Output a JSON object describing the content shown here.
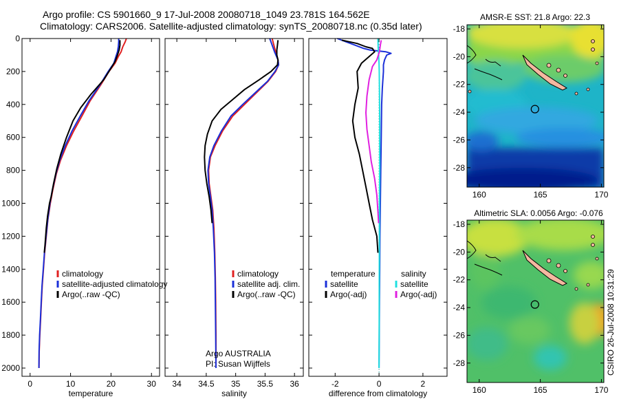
{
  "header": {
    "line1": "Argo profile: CS 5901660_9 17-Jul-2008 20080718_1049 23.781S 164.562E",
    "line2": "Climatology: CARS2006. Satellite-adjusted climatology: synTS_20080718.nc (0.35d later)"
  },
  "credit": {
    "line1": "Argo AUSTRALIA",
    "line2": "PI: Susan Wijffels"
  },
  "stamp": "CSIRO 26-Jul-2008 10:31:29",
  "colors": {
    "climatology": "#e02020",
    "satellite": "#1a2fd8",
    "argo": "#000000",
    "salinity_satellite": "#20e0e0",
    "salinity_argo": "#e020e0",
    "map_land": "#f4b8a0"
  },
  "chart_data": [
    {
      "type": "line",
      "panel": "temperature",
      "xlabel": "temperature",
      "ylabel": "",
      "xlim": [
        -2,
        32
      ],
      "ylim": [
        0,
        2050
      ],
      "y_inverted": true,
      "xticks": [
        0,
        10,
        20,
        30
      ],
      "yticks": [
        0,
        200,
        400,
        600,
        800,
        1000,
        1200,
        1400,
        1600,
        1800,
        2000
      ],
      "legend": [
        "climatology",
        "satellite-adjusted climatology",
        "Argo(..raw -QC)"
      ],
      "series": [
        {
          "name": "climatology",
          "color": "#e02020",
          "points": [
            [
              23.8,
              0
            ],
            [
              23.5,
              20
            ],
            [
              22.9,
              50
            ],
            [
              22.5,
              80
            ],
            [
              21.8,
              110
            ],
            [
              21.0,
              150
            ],
            [
              19.5,
              200
            ],
            [
              17.5,
              280
            ],
            [
              14.8,
              380
            ],
            [
              12.8,
              470
            ],
            [
              10.8,
              560
            ],
            [
              9.0,
              650
            ],
            [
              7.5,
              740
            ],
            [
              6.5,
              820
            ],
            [
              5.6,
              920
            ],
            [
              5.0,
              1000
            ],
            [
              4.4,
              1100
            ],
            [
              4.0,
              1200
            ],
            [
              3.6,
              1300
            ],
            [
              3.3,
              1400
            ],
            [
              3.0,
              1500
            ],
            [
              2.8,
              1600
            ],
            [
              2.6,
              1700
            ],
            [
              2.4,
              1800
            ],
            [
              2.25,
              1900
            ],
            [
              2.2,
              2000
            ]
          ]
        },
        {
          "name": "satellite-adjusted climatology",
          "color": "#1a2fd8",
          "points": [
            [
              21.9,
              0
            ],
            [
              21.9,
              20
            ],
            [
              21.8,
              50
            ],
            [
              21.6,
              80
            ],
            [
              21.2,
              110
            ],
            [
              20.7,
              150
            ],
            [
              19.3,
              200
            ],
            [
              17.3,
              280
            ],
            [
              14.5,
              380
            ],
            [
              12.4,
              470
            ],
            [
              10.4,
              560
            ],
            [
              8.7,
              650
            ],
            [
              7.3,
              740
            ],
            [
              6.4,
              820
            ],
            [
              5.5,
              920
            ],
            [
              4.9,
              1000
            ],
            [
              4.35,
              1100
            ],
            [
              3.95,
              1200
            ],
            [
              3.55,
              1300
            ],
            [
              3.25,
              1400
            ],
            [
              2.95,
              1500
            ],
            [
              2.75,
              1600
            ],
            [
              2.55,
              1700
            ],
            [
              2.35,
              1800
            ],
            [
              2.22,
              1900
            ],
            [
              2.18,
              2000
            ]
          ]
        },
        {
          "name": "Argo(..raw -QC)",
          "color": "#000000",
          "points": [
            [
              22.2,
              10
            ],
            [
              22.2,
              40
            ],
            [
              22.0,
              70
            ],
            [
              21.6,
              100
            ],
            [
              21.0,
              140
            ],
            [
              20.0,
              180
            ],
            [
              18.2,
              250
            ],
            [
              15.0,
              340
            ],
            [
              12.5,
              420
            ],
            [
              10.6,
              500
            ],
            [
              9.0,
              600
            ],
            [
              7.6,
              700
            ],
            [
              6.6,
              790
            ],
            [
              5.8,
              880
            ],
            [
              5.2,
              960
            ],
            [
              4.8,
              1000
            ],
            [
              4.3,
              1080
            ],
            [
              4.0,
              1150
            ],
            [
              3.7,
              1250
            ],
            [
              3.5,
              1300
            ]
          ]
        }
      ]
    },
    {
      "type": "line",
      "panel": "salinity",
      "xlabel": "salinity",
      "ylabel": "",
      "xlim": [
        33.8,
        36.15
      ],
      "ylim": [
        0,
        2050
      ],
      "y_inverted": true,
      "xticks": [
        34,
        34.5,
        35,
        35.5,
        36
      ],
      "legend": [
        "climatology",
        "satellite adj. clim.",
        "Argo(..raw -QC)"
      ],
      "series": [
        {
          "name": "climatology",
          "color": "#e02020",
          "points": [
            [
              35.62,
              0
            ],
            [
              35.65,
              40
            ],
            [
              35.68,
              80
            ],
            [
              35.72,
              130
            ],
            [
              35.73,
              160
            ],
            [
              35.68,
              200
            ],
            [
              35.55,
              260
            ],
            [
              35.35,
              330
            ],
            [
              35.15,
              400
            ],
            [
              34.95,
              470
            ],
            [
              34.78,
              560
            ],
            [
              34.65,
              650
            ],
            [
              34.57,
              720
            ],
            [
              34.54,
              800
            ],
            [
              34.55,
              880
            ],
            [
              34.58,
              960
            ],
            [
              34.61,
              1040
            ],
            [
              34.63,
              1150
            ],
            [
              34.645,
              1300
            ],
            [
              34.655,
              1450
            ],
            [
              34.66,
              1600
            ],
            [
              34.665,
              1800
            ],
            [
              34.665,
              2000
            ]
          ]
        },
        {
          "name": "satellite adj. clim.",
          "color": "#1a2fd8",
          "points": [
            [
              35.58,
              0
            ],
            [
              35.62,
              40
            ],
            [
              35.66,
              80
            ],
            [
              35.72,
              130
            ],
            [
              35.73,
              160
            ],
            [
              35.67,
              200
            ],
            [
              35.54,
              260
            ],
            [
              35.33,
              330
            ],
            [
              35.12,
              400
            ],
            [
              34.92,
              470
            ],
            [
              34.76,
              560
            ],
            [
              34.63,
              650
            ],
            [
              34.56,
              720
            ],
            [
              34.53,
              800
            ],
            [
              34.54,
              880
            ],
            [
              34.57,
              960
            ],
            [
              34.6,
              1040
            ],
            [
              34.62,
              1150
            ],
            [
              34.64,
              1300
            ],
            [
              34.65,
              1450
            ],
            [
              34.655,
              1600
            ],
            [
              34.66,
              1800
            ],
            [
              34.665,
              2000
            ]
          ]
        },
        {
          "name": "Argo(..raw -QC)",
          "color": "#000000",
          "points": [
            [
              35.72,
              10
            ],
            [
              35.71,
              40
            ],
            [
              35.7,
              70
            ],
            [
              35.7,
              100
            ],
            [
              35.72,
              130
            ],
            [
              35.71,
              160
            ],
            [
              35.6,
              200
            ],
            [
              35.4,
              250
            ],
            [
              35.15,
              310
            ],
            [
              34.95,
              370
            ],
            [
              34.75,
              430
            ],
            [
              34.6,
              500
            ],
            [
              34.52,
              580
            ],
            [
              34.48,
              650
            ],
            [
              34.47,
              720
            ],
            [
              34.48,
              800
            ],
            [
              34.51,
              880
            ],
            [
              34.55,
              960
            ],
            [
              34.58,
              1040
            ],
            [
              34.6,
              1120
            ]
          ]
        }
      ]
    },
    {
      "type": "line",
      "panel": "difference",
      "xlabel": "difference from climatology",
      "ylabel": "",
      "xlim": [
        -3.2,
        3.1
      ],
      "ylim": [
        0,
        2050
      ],
      "y_inverted": true,
      "xticks": [
        -2,
        0,
        2
      ],
      "legend_left_title": "temperature",
      "legend_right_title": "salinity",
      "legend": [
        "satellite",
        "Argo(-adj)",
        "satellite",
        "Argo(-adj)"
      ],
      "series": [
        {
          "name": "satellite",
          "group": "temperature",
          "color": "#1a2fd8",
          "points": [
            [
              -1.9,
              0
            ],
            [
              -1.5,
              20
            ],
            [
              -1.1,
              40
            ],
            [
              -0.7,
              60
            ],
            [
              -0.4,
              70
            ],
            [
              0.3,
              80
            ],
            [
              0.55,
              90
            ],
            [
              0.35,
              100
            ],
            [
              0.25,
              130
            ],
            [
              0.2,
              160
            ],
            [
              0.2,
              200
            ],
            [
              0.15,
              300
            ],
            [
              0.12,
              400
            ],
            [
              0.1,
              600
            ],
            [
              0.08,
              800
            ],
            [
              0.06,
              1000
            ],
            [
              0.04,
              1200
            ],
            [
              0.03,
              1400
            ],
            [
              0.02,
              1600
            ],
            [
              0.01,
              1800
            ],
            [
              0.0,
              2000
            ]
          ]
        },
        {
          "name": "Argo(-adj)",
          "group": "temperature",
          "color": "#000000",
          "points": [
            [
              -1.7,
              10
            ],
            [
              -1.0,
              30
            ],
            [
              -0.6,
              50
            ],
            [
              -0.3,
              60
            ],
            [
              -0.2,
              80
            ],
            [
              -0.8,
              150
            ],
            [
              -1.0,
              200
            ],
            [
              -0.95,
              300
            ],
            [
              -1.1,
              400
            ],
            [
              -1.2,
              500
            ],
            [
              -1.1,
              600
            ],
            [
              -0.9,
              700
            ],
            [
              -0.75,
              800
            ],
            [
              -0.6,
              900
            ],
            [
              -0.45,
              1000
            ],
            [
              -0.3,
              1100
            ],
            [
              -0.1,
              1200
            ],
            [
              -0.05,
              1300
            ]
          ]
        },
        {
          "name": "satellite",
          "group": "salinity",
          "color": "#20e0e0",
          "points": [
            [
              -0.05,
              0
            ],
            [
              -0.04,
              50
            ],
            [
              -0.02,
              100
            ],
            [
              0.0,
              150
            ],
            [
              0.01,
              200
            ],
            [
              0.02,
              300
            ],
            [
              0.03,
              500
            ],
            [
              0.03,
              800
            ],
            [
              0.02,
              1000
            ],
            [
              0.015,
              1200
            ],
            [
              0.01,
              1500
            ],
            [
              0.005,
              1800
            ],
            [
              0.0,
              2000
            ]
          ]
        },
        {
          "name": "Argo(-adj)",
          "group": "salinity",
          "color": "#e020e0",
          "points": [
            [
              0.1,
              10
            ],
            [
              0.06,
              40
            ],
            [
              0.02,
              80
            ],
            [
              -0.1,
              130
            ],
            [
              -0.3,
              170
            ],
            [
              -0.45,
              250
            ],
            [
              -0.55,
              350
            ],
            [
              -0.6,
              450
            ],
            [
              -0.55,
              550
            ],
            [
              -0.45,
              650
            ],
            [
              -0.35,
              750
            ],
            [
              -0.2,
              850
            ],
            [
              -0.1,
              950
            ],
            [
              -0.05,
              1050
            ],
            [
              -0.02,
              1120
            ]
          ]
        }
      ]
    },
    {
      "type": "heatmap",
      "panel": "sst-map",
      "title": "AMSR-E SST: 21.8 Argo: 22.3",
      "xlim": [
        159,
        170.2
      ],
      "ylim": [
        -29.4,
        -17.7
      ],
      "xticks": [
        160,
        165,
        170
      ],
      "yticks": [
        -18,
        -20,
        -22,
        -24,
        -26,
        -28
      ],
      "argo_position": {
        "lon": 164.56,
        "lat": -23.78
      }
    },
    {
      "type": "heatmap",
      "panel": "sla-map",
      "title": "Altimetric SLA: 0.0056 Argo: -0.076",
      "xlim": [
        159,
        170.2
      ],
      "ylim": [
        -29.4,
        -17.7
      ],
      "xticks": [
        160,
        165,
        170
      ],
      "yticks": [
        -18,
        -20,
        -22,
        -24,
        -26,
        -28
      ],
      "argo_position": {
        "lon": 164.56,
        "lat": -23.78
      }
    }
  ]
}
